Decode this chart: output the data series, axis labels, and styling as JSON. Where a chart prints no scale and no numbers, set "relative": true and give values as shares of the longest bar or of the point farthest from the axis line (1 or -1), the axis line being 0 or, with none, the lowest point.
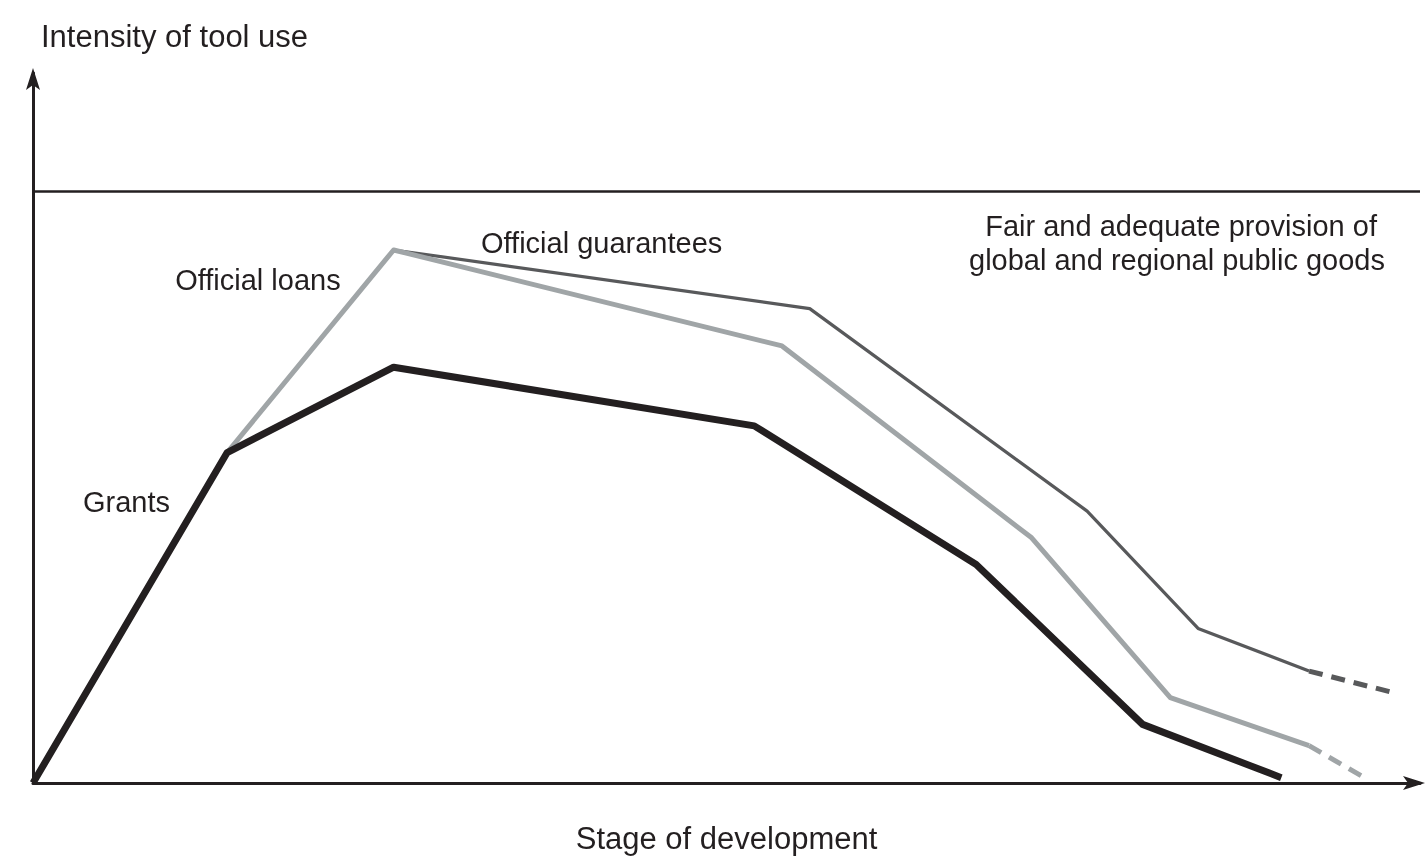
{
  "chart_data": {
    "type": "line",
    "relative": true,
    "xlabel": "Stage of development",
    "annotations": [
      "Intensity of tool use"
    ],
    "grid": false,
    "legend": false,
    "categories": [
      null,
      null,
      null,
      null,
      null,
      null,
      null,
      null,
      null,
      null,
      null,
      null,
      null,
      null,
      null,
      null,
      null,
      null,
      null,
      null,
      null,
      null,
      null,
      null,
      null,
      null,
      null,
      null,
      null,
      null,
      null,
      null,
      null,
      null,
      null,
      null,
      null,
      null,
      null,
      null,
      null,
      null,
      null,
      null,
      null,
      null,
      null,
      null,
      null,
      null,
      null
    ],
    "series": [
      {
        "name": "Grants",
        "color": "#231f20",
        "values": [
          0,
          null,
          null,
          null,
          null,
          null,
          null,
          0.62,
          null,
          null,
          null,
          null,
          null,
          0.78,
          null,
          null,
          null,
          null,
          null,
          null,
          null,
          null,
          null,
          null,
          null,
          null,
          0.67,
          null,
          null,
          null,
          null,
          null,
          null,
          null,
          0.41,
          null,
          null,
          null,
          null,
          null,
          0.11,
          null,
          null,
          null,
          null,
          0.01,
          null,
          null,
          null,
          null,
          null
        ]
      },
      {
        "name": "Official loans",
        "color": "#a0a5a7",
        "values": [
          null,
          null,
          null,
          null,
          null,
          null,
          null,
          0.62,
          null,
          null,
          null,
          null,
          null,
          1.0,
          null,
          null,
          null,
          null,
          null,
          null,
          null,
          null,
          null,
          null,
          null,
          null,
          null,
          0.82,
          null,
          null,
          null,
          null,
          null,
          null,
          null,
          null,
          0.46,
          null,
          null,
          null,
          null,
          0.16,
          null,
          null,
          null,
          null,
          0.07,
          null,
          null,
          null,
          null
        ]
      },
      {
        "name": "Official guarantees",
        "color": "#58595b",
        "values": [
          null,
          null,
          null,
          null,
          null,
          null,
          null,
          null,
          null,
          null,
          null,
          null,
          null,
          1.0,
          null,
          null,
          null,
          null,
          null,
          null,
          null,
          null,
          null,
          null,
          null,
          null,
          null,
          null,
          0.89,
          null,
          null,
          null,
          null,
          null,
          null,
          null,
          null,
          null,
          0.51,
          null,
          null,
          null,
          0.29,
          null,
          null,
          null,
          0.21,
          null,
          null,
          null,
          null
        ]
      },
      {
        "color": "#a0a5a7",
        "line_style": "dashed",
        "values": [
          null,
          null,
          null,
          null,
          null,
          null,
          null,
          null,
          null,
          null,
          null,
          null,
          null,
          null,
          null,
          null,
          null,
          null,
          null,
          null,
          null,
          null,
          null,
          null,
          null,
          null,
          null,
          null,
          null,
          null,
          null,
          null,
          null,
          null,
          null,
          null,
          null,
          null,
          null,
          null,
          null,
          null,
          null,
          null,
          null,
          null,
          0.07,
          null,
          0.01,
          null,
          null
        ]
      },
      {
        "color": "#58595b",
        "line_style": "dashed",
        "values": [
          null,
          null,
          null,
          null,
          null,
          null,
          null,
          null,
          null,
          null,
          null,
          null,
          null,
          null,
          null,
          null,
          null,
          null,
          null,
          null,
          null,
          null,
          null,
          null,
          null,
          null,
          null,
          null,
          null,
          null,
          null,
          null,
          null,
          null,
          null,
          null,
          null,
          null,
          null,
          null,
          null,
          null,
          null,
          null,
          null,
          null,
          0.21,
          null,
          null,
          0.17,
          null
        ]
      }
    ],
    "ref_lines": [
      {
        "axis": "y",
        "value": 1.11,
        "label": "Fair and adequate provision of global and regional public goods",
        "color": "#231f20"
      }
    ]
  }
}
